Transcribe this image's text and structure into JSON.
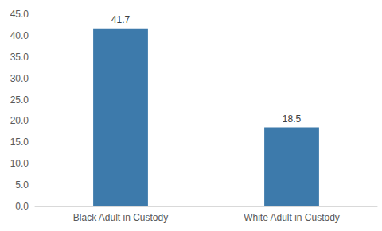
{
  "chart_data": {
    "type": "bar",
    "categories": [
      "Black Adult in Custody",
      "White Adult in Custody"
    ],
    "values": [
      41.7,
      18.5
    ],
    "color": "#3d7aab",
    "ylim": [
      0,
      45
    ],
    "yticks": [
      {
        "value": 0,
        "label": "0.0"
      },
      {
        "value": 5,
        "label": "5.0"
      },
      {
        "value": 10,
        "label": "10.0"
      },
      {
        "value": 15,
        "label": "15.0"
      },
      {
        "value": 20,
        "label": "20.0"
      },
      {
        "value": 25,
        "label": "25.0"
      },
      {
        "value": 30,
        "label": "30.0"
      },
      {
        "value": 35,
        "label": "35.0"
      },
      {
        "value": 40,
        "label": "40.0"
      },
      {
        "value": 45,
        "label": "45.0"
      }
    ],
    "grid": false,
    "data_labels": true
  }
}
